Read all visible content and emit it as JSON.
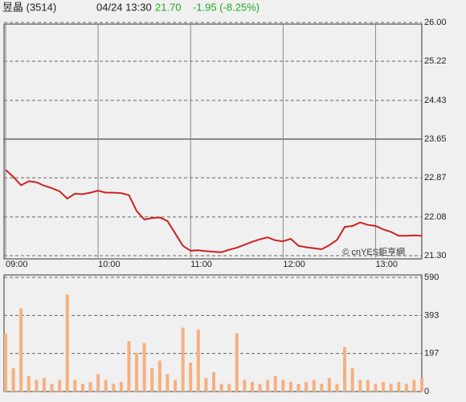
{
  "header": {
    "name": "昱晶 (3514)",
    "time": "04/24 13:30",
    "price": "21.70",
    "change": "-1.95 (-8.25%)",
    "watermark": "© cnYES鉅亨網"
  },
  "chart_data": [
    {
      "type": "line",
      "color": "#cc2222",
      "prev_close": 23.65,
      "x": [
        "09:00",
        "09:05",
        "09:10",
        "09:15",
        "09:20",
        "09:25",
        "09:30",
        "09:35",
        "09:40",
        "09:45",
        "09:50",
        "09:55",
        "10:00",
        "10:05",
        "10:10",
        "10:15",
        "10:20",
        "10:25",
        "10:30",
        "10:35",
        "10:40",
        "10:45",
        "10:50",
        "10:55",
        "11:00",
        "11:05",
        "11:10",
        "11:15",
        "11:20",
        "11:25",
        "11:30",
        "11:35",
        "11:40",
        "11:45",
        "11:50",
        "11:55",
        "12:00",
        "12:05",
        "12:10",
        "12:15",
        "12:20",
        "12:25",
        "12:30",
        "12:35",
        "12:40",
        "12:45",
        "12:50",
        "12:55",
        "13:00",
        "13:05",
        "13:10",
        "13:15",
        "13:20",
        "13:25",
        "13:30"
      ],
      "values": [
        23.03,
        22.89,
        22.72,
        22.8,
        22.78,
        22.71,
        22.66,
        22.6,
        22.45,
        22.55,
        22.54,
        22.57,
        22.61,
        22.57,
        22.57,
        22.56,
        22.52,
        22.2,
        22.03,
        22.06,
        22.07,
        22.0,
        21.75,
        21.5,
        21.4,
        21.41,
        21.39,
        21.38,
        21.37,
        21.42,
        21.46,
        21.52,
        21.58,
        21.63,
        21.67,
        21.61,
        21.59,
        21.64,
        21.5,
        21.47,
        21.45,
        21.43,
        21.51,
        21.62,
        21.88,
        21.9,
        21.97,
        21.92,
        21.9,
        21.83,
        21.78,
        21.7,
        21.7,
        21.71,
        21.7
      ],
      "xlim": [
        "09:00",
        "13:30"
      ],
      "xticks": [
        "09:00",
        "10:00",
        "11:00",
        "12:00",
        "13:00"
      ],
      "ylim": [
        21.3,
        26.0
      ],
      "yticks": [
        {
          "value": 21.3,
          "label": "21.30"
        },
        22.08,
        22.87,
        23.65,
        24.43,
        25.22,
        {
          "value": 26.0,
          "label": "26.00"
        }
      ]
    },
    {
      "type": "bar",
      "color": "#f5b080",
      "values": [
        300,
        120,
        430,
        80,
        60,
        70,
        40,
        60,
        500,
        60,
        40,
        50,
        90,
        60,
        40,
        50,
        260,
        200,
        250,
        120,
        160,
        90,
        60,
        330,
        150,
        320,
        70,
        100,
        40,
        40,
        300,
        60,
        50,
        40,
        60,
        80,
        60,
        50,
        40,
        50,
        60,
        40,
        70,
        40,
        230,
        120,
        60,
        60,
        40,
        50,
        40,
        50,
        40,
        60,
        70
      ],
      "ylim": [
        0,
        590
      ],
      "yticks": [
        0,
        197,
        393,
        590
      ]
    }
  ]
}
